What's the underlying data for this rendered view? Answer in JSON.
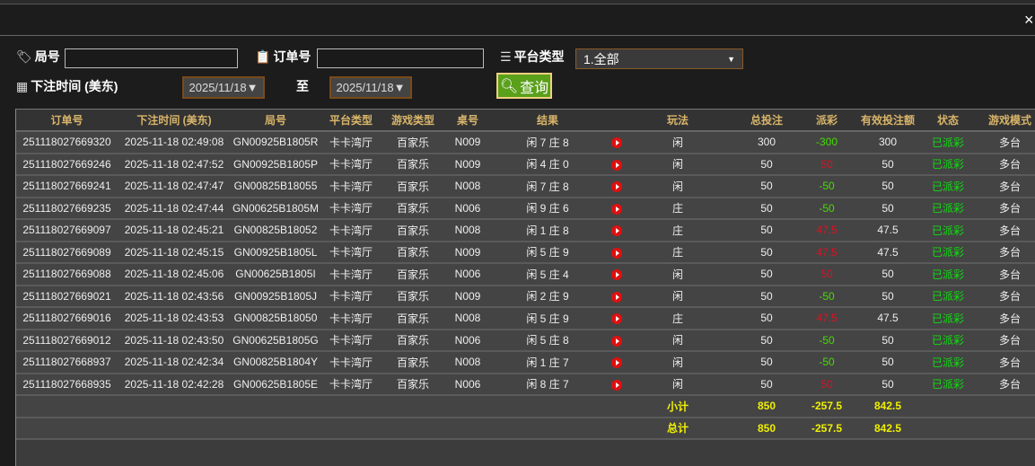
{
  "filters": {
    "round_label": "局号",
    "round_value": "",
    "order_label": "订单号",
    "order_value": "",
    "platform_label": "平台类型",
    "platform_value": "1.全部",
    "time_label": "下注时间 (美东)",
    "date_from": "2025/11/18▼",
    "to_label": "至",
    "date_to": "2025/11/18▼",
    "query_label": "查询"
  },
  "close": "×",
  "columns": [
    "订单号",
    "下注时间 (美东)",
    "局号",
    "平台类型",
    "游戏类型",
    "桌号",
    "结果",
    "",
    "玩法",
    "总投注",
    "派彩",
    "有效投注额",
    "状态",
    "游戏模式"
  ],
  "rows": [
    {
      "order": "251118027669320",
      "time": "2025-11-18 02:49:08",
      "round": "GN00925B1805R",
      "platform": "卡卡湾厅",
      "game": "百家乐",
      "table": "N009",
      "result": "闲 7 庄 8",
      "play": "闲",
      "bet": "300",
      "payout": "-300",
      "valid": "300",
      "status": "已派彩",
      "mode": "多台"
    },
    {
      "order": "251118027669246",
      "time": "2025-11-18 02:47:52",
      "round": "GN00925B1805P",
      "platform": "卡卡湾厅",
      "game": "百家乐",
      "table": "N009",
      "result": "闲 4 庄 0",
      "play": "闲",
      "bet": "50",
      "payout": "50",
      "valid": "50",
      "status": "已派彩",
      "mode": "多台"
    },
    {
      "order": "251118027669241",
      "time": "2025-11-18 02:47:47",
      "round": "GN00825B18055",
      "platform": "卡卡湾厅",
      "game": "百家乐",
      "table": "N008",
      "result": "闲 7 庄 8",
      "play": "闲",
      "bet": "50",
      "payout": "-50",
      "valid": "50",
      "status": "已派彩",
      "mode": "多台"
    },
    {
      "order": "251118027669235",
      "time": "2025-11-18 02:47:44",
      "round": "GN00625B1805M",
      "platform": "卡卡湾厅",
      "game": "百家乐",
      "table": "N006",
      "result": "闲 9 庄 6",
      "play": "庄",
      "bet": "50",
      "payout": "-50",
      "valid": "50",
      "status": "已派彩",
      "mode": "多台"
    },
    {
      "order": "251118027669097",
      "time": "2025-11-18 02:45:21",
      "round": "GN00825B18052",
      "platform": "卡卡湾厅",
      "game": "百家乐",
      "table": "N008",
      "result": "闲 1 庄 8",
      "play": "庄",
      "bet": "50",
      "payout": "47.5",
      "valid": "47.5",
      "status": "已派彩",
      "mode": "多台"
    },
    {
      "order": "251118027669089",
      "time": "2025-11-18 02:45:15",
      "round": "GN00925B1805L",
      "platform": "卡卡湾厅",
      "game": "百家乐",
      "table": "N009",
      "result": "闲 5 庄 9",
      "play": "庄",
      "bet": "50",
      "payout": "47.5",
      "valid": "47.5",
      "status": "已派彩",
      "mode": "多台"
    },
    {
      "order": "251118027669088",
      "time": "2025-11-18 02:45:06",
      "round": "GN00625B1805I",
      "platform": "卡卡湾厅",
      "game": "百家乐",
      "table": "N006",
      "result": "闲 5 庄 4",
      "play": "闲",
      "bet": "50",
      "payout": "50",
      "valid": "50",
      "status": "已派彩",
      "mode": "多台"
    },
    {
      "order": "251118027669021",
      "time": "2025-11-18 02:43:56",
      "round": "GN00925B1805J",
      "platform": "卡卡湾厅",
      "game": "百家乐",
      "table": "N009",
      "result": "闲 2 庄 9",
      "play": "闲",
      "bet": "50",
      "payout": "-50",
      "valid": "50",
      "status": "已派彩",
      "mode": "多台"
    },
    {
      "order": "251118027669016",
      "time": "2025-11-18 02:43:53",
      "round": "GN00825B18050",
      "platform": "卡卡湾厅",
      "game": "百家乐",
      "table": "N008",
      "result": "闲 5 庄 9",
      "play": "庄",
      "bet": "50",
      "payout": "47.5",
      "valid": "47.5",
      "status": "已派彩",
      "mode": "多台"
    },
    {
      "order": "251118027669012",
      "time": "2025-11-18 02:43:50",
      "round": "GN00625B1805G",
      "platform": "卡卡湾厅",
      "game": "百家乐",
      "table": "N006",
      "result": "闲 5 庄 8",
      "play": "闲",
      "bet": "50",
      "payout": "-50",
      "valid": "50",
      "status": "已派彩",
      "mode": "多台"
    },
    {
      "order": "251118027668937",
      "time": "2025-11-18 02:42:34",
      "round": "GN00825B1804Y",
      "platform": "卡卡湾厅",
      "game": "百家乐",
      "table": "N008",
      "result": "闲 1 庄 7",
      "play": "闲",
      "bet": "50",
      "payout": "-50",
      "valid": "50",
      "status": "已派彩",
      "mode": "多台"
    },
    {
      "order": "251118027668935",
      "time": "2025-11-18 02:42:28",
      "round": "GN00625B1805E",
      "platform": "卡卡湾厅",
      "game": "百家乐",
      "table": "N006",
      "result": "闲 8 庄 7",
      "play": "闲",
      "bet": "50",
      "payout": "50",
      "valid": "50",
      "status": "已派彩",
      "mode": "多台"
    }
  ],
  "totals": [
    {
      "label": "小计",
      "bet": "850",
      "payout": "-257.5",
      "valid": "842.5"
    },
    {
      "label": "总计",
      "bet": "850",
      "payout": "-257.5",
      "valid": "842.5"
    }
  ],
  "colors": {
    "header_text": "#d9b56a",
    "payout_negative": "#44dd00",
    "payout_positive": "#dd1122",
    "status": "#11dd11",
    "totals": "#f0f000",
    "query_button": "#5aa01a"
  }
}
